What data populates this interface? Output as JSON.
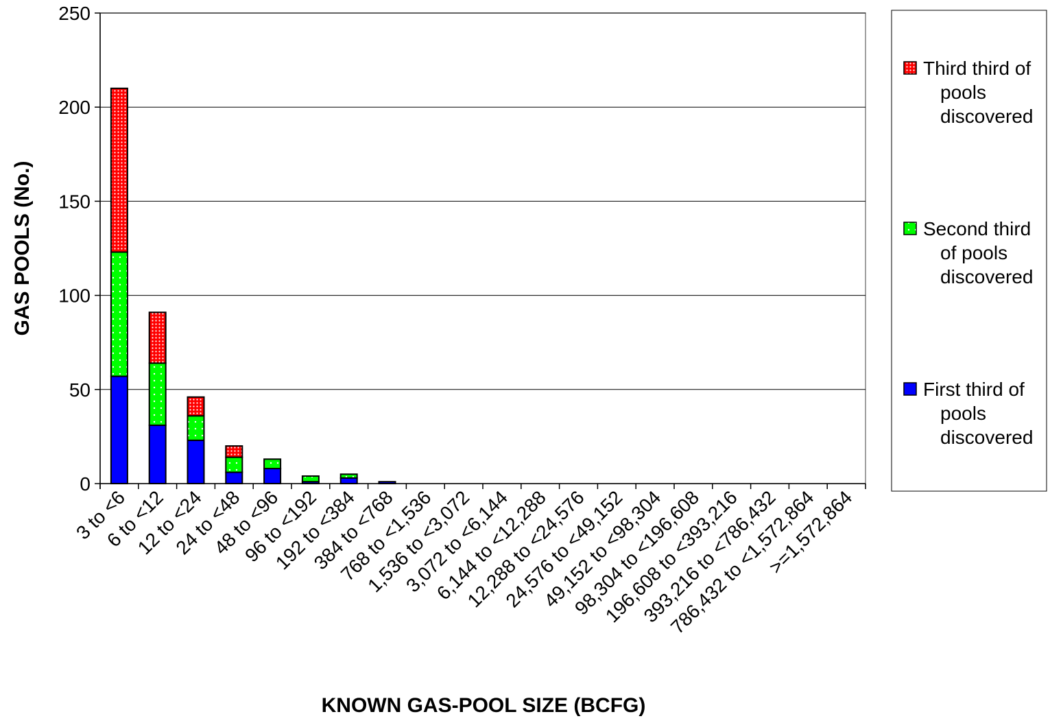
{
  "chart_data": {
    "type": "bar",
    "stacked": true,
    "xlabel": "KNOWN GAS-POOL SIZE (BCFG)",
    "ylabel": "GAS POOLS (No.)",
    "ylim": [
      0,
      250
    ],
    "yticks": [
      0,
      50,
      100,
      150,
      200,
      250
    ],
    "grid": true,
    "legend_position": "right",
    "categories": [
      "3 to <6",
      "6 to <12",
      "12 to <24",
      "24 to <48",
      "48 to <96",
      "96 to <192",
      "192 to <384",
      "384 to <768",
      "768 to <1,536",
      "1,536 to <3,072",
      "3,072 to <6,144",
      "6,144 to <12,288",
      "12,288 to <24,576",
      "24,576 to <49,152",
      "49,152 to <98,304",
      "98,304 to <196,608",
      "196,608 to <393,216",
      "393,216 to <786,432",
      "786,432 to <1,572,864",
      ">=1,572,864"
    ],
    "series": [
      {
        "name": "First third of pools discovered",
        "legend_lines": [
          "First third of",
          "pools",
          "discovered"
        ],
        "color": "#0000ff",
        "pattern": "solid",
        "values": [
          57,
          31,
          23,
          6,
          8,
          1,
          3,
          1,
          0,
          0,
          0,
          0,
          0,
          0,
          0,
          0,
          0,
          0,
          0,
          0
        ]
      },
      {
        "name": "Second third of pools discovered",
        "legend_lines": [
          "Second third",
          "of pools",
          "discovered"
        ],
        "color": "#00ff00",
        "pattern": "dots",
        "values": [
          66,
          33,
          13,
          8,
          5,
          3,
          2,
          0,
          0,
          0,
          0,
          0,
          0,
          0,
          0,
          0,
          0,
          0,
          0,
          0
        ]
      },
      {
        "name": "Third third of pools discovered",
        "legend_lines": [
          "Third third of",
          "pools",
          "discovered"
        ],
        "color": "#ff0000",
        "pattern": "dense-dots",
        "values": [
          87,
          27,
          10,
          6,
          0,
          0,
          0,
          0,
          0,
          0,
          0,
          0,
          0,
          0,
          0,
          0,
          0,
          0,
          0,
          0
        ]
      }
    ]
  }
}
